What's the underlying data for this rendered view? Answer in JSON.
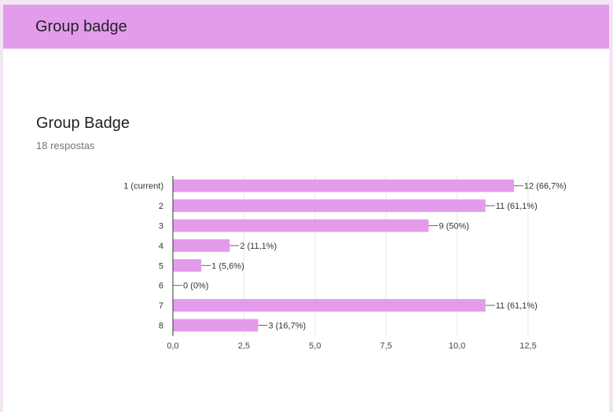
{
  "header": {
    "title": "Group badge"
  },
  "question": {
    "title": "Group Badge",
    "responses": "18 respostas"
  },
  "colors": {
    "bar": "#e39cec",
    "header": "#e39cec",
    "grid": "#e8e8e8",
    "axis": "#333333"
  },
  "chart_data": {
    "type": "bar",
    "orientation": "horizontal",
    "categories": [
      "1 (current)",
      "2",
      "3",
      "4",
      "5",
      "6",
      "7",
      "8"
    ],
    "values": [
      12,
      11,
      9,
      2,
      1,
      0,
      11,
      3
    ],
    "data_labels": [
      "12 (66,7%)",
      "11 (61,1%)",
      "9 (50%)",
      "2 (11,1%)",
      "1 (5,6%)",
      "0 (0%)",
      "11 (61,1%)",
      "3 (16,7%)"
    ],
    "x_ticks": [
      0,
      2.5,
      5,
      7.5,
      10,
      12.5
    ],
    "x_tick_labels": [
      "0,0",
      "2,5",
      "5,0",
      "7,5",
      "10,0",
      "12,5"
    ],
    "xlim": [
      0,
      12.5
    ],
    "grid": true
  }
}
